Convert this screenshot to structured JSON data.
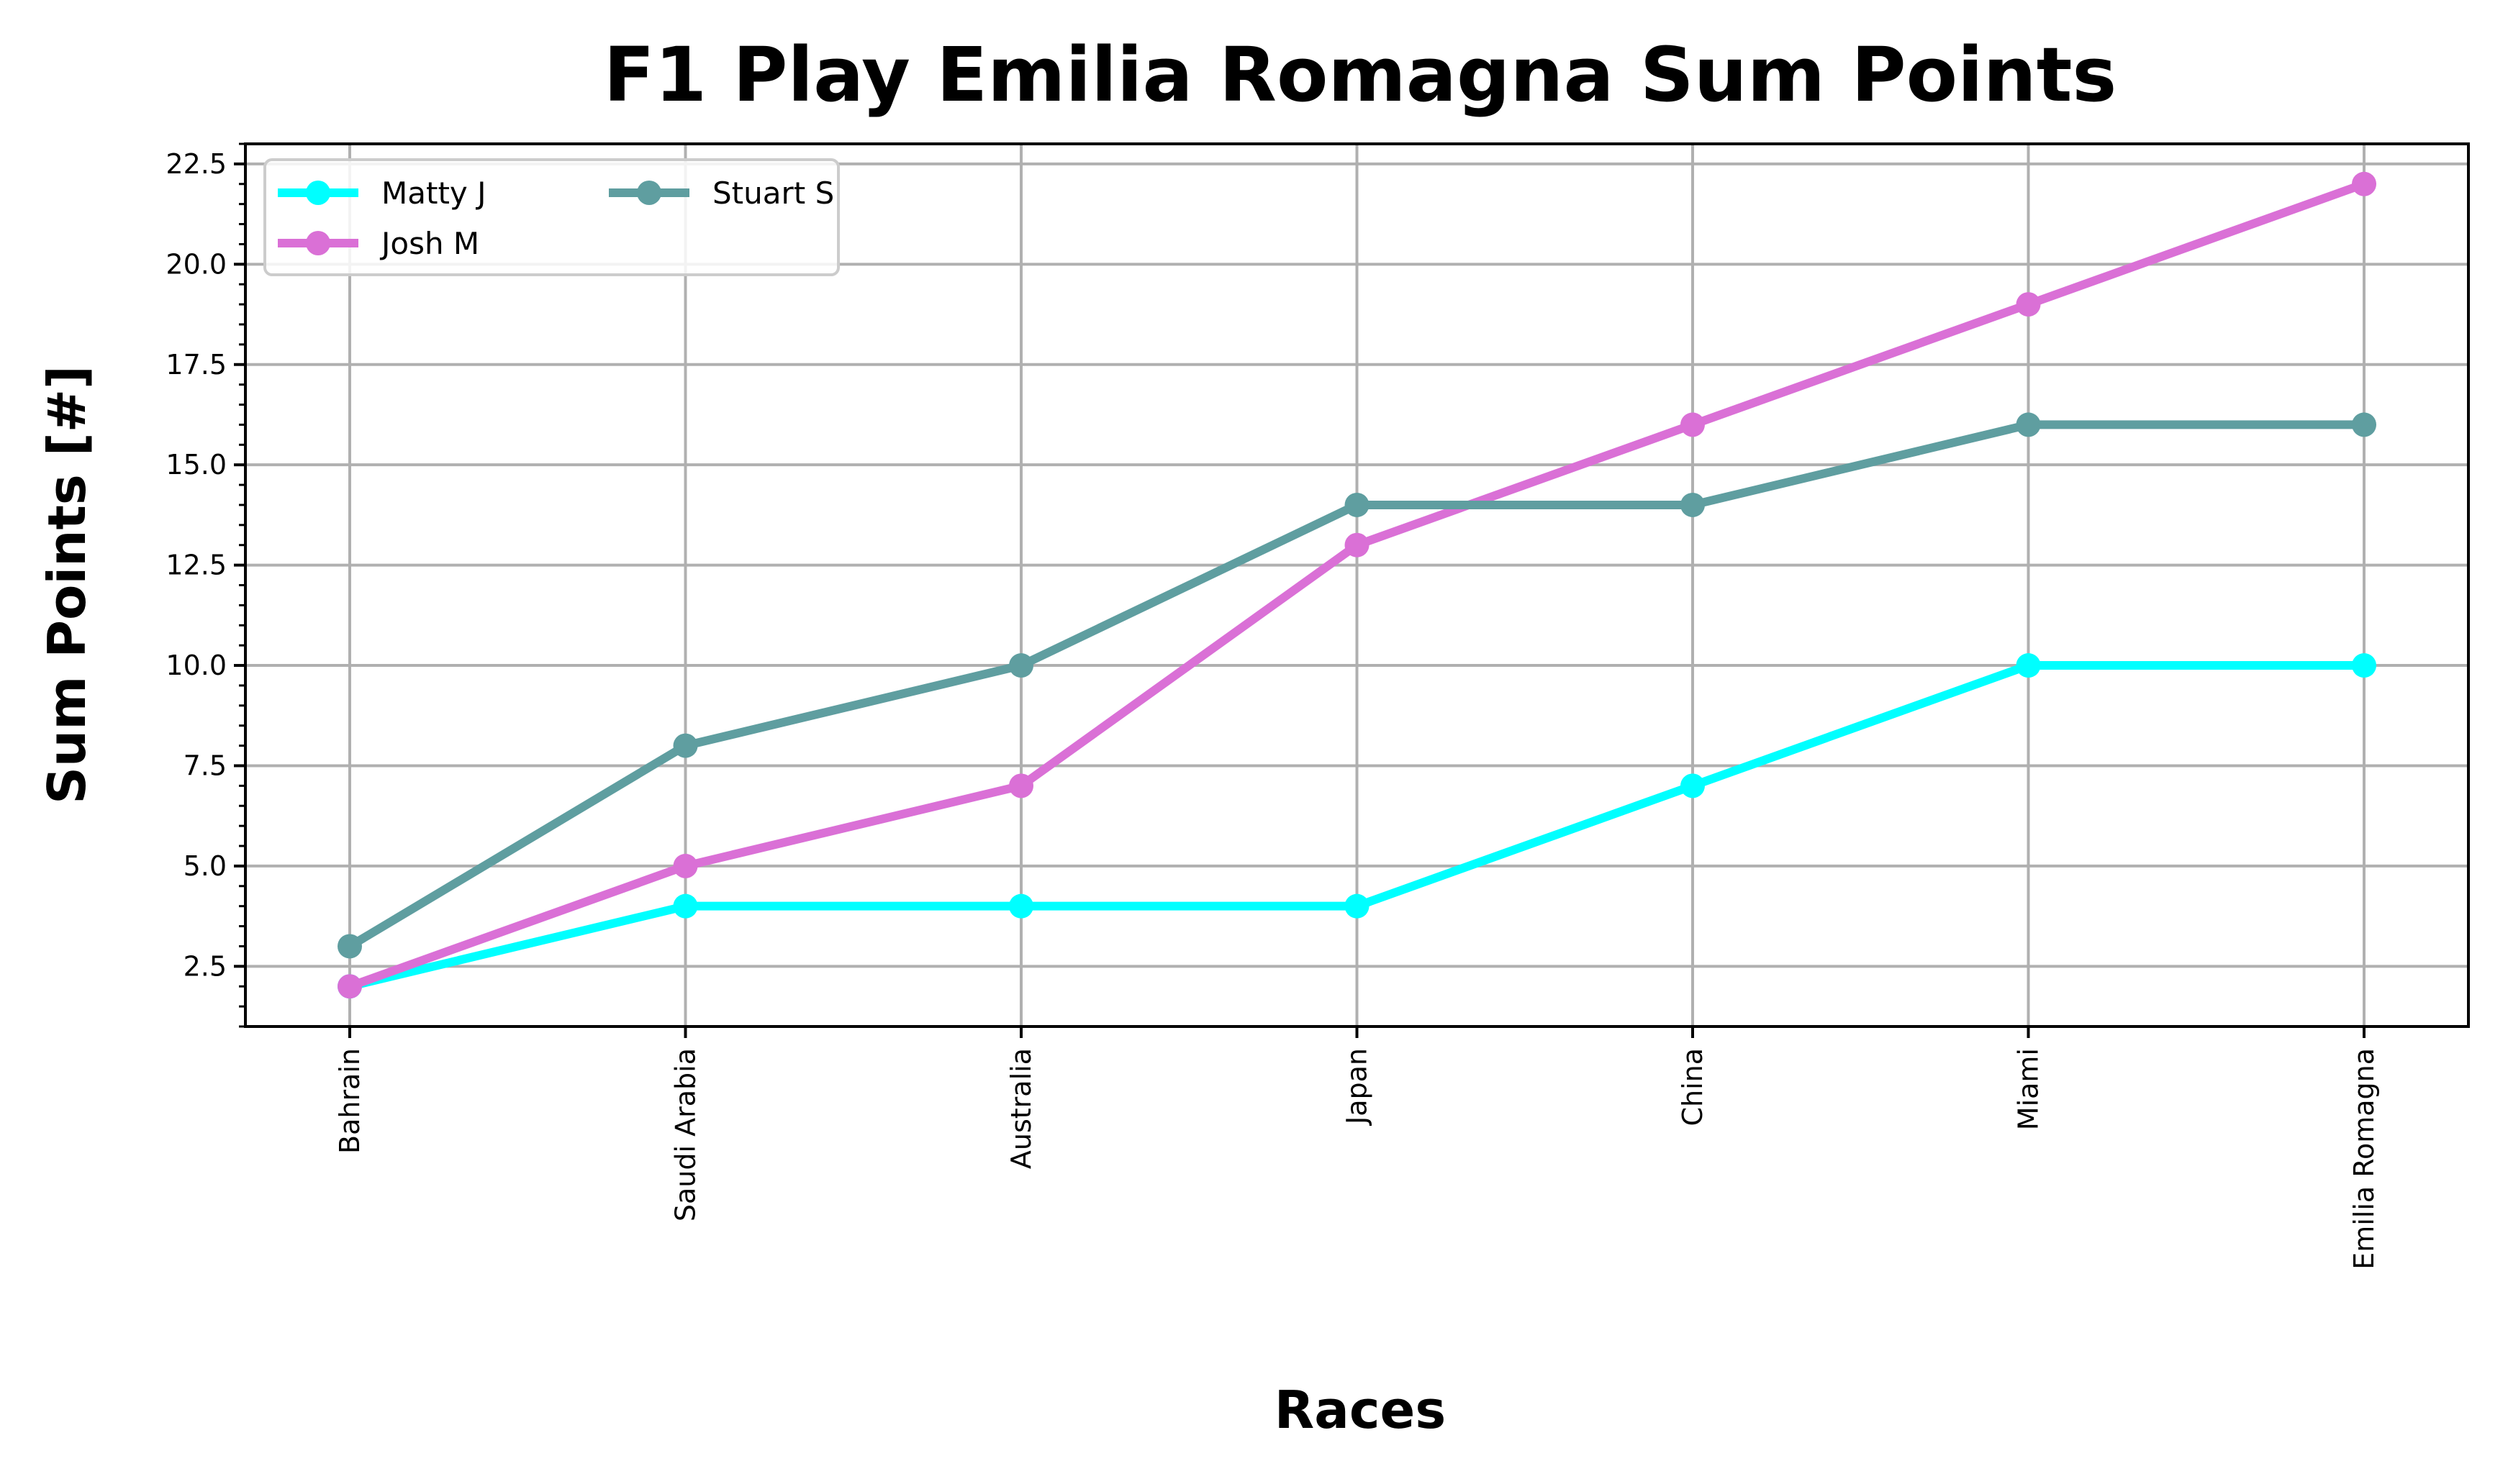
{
  "chart_data": {
    "type": "line",
    "title": "F1 Play Emilia Romagna Sum Points",
    "xlabel": "Races",
    "ylabel": "Sum Points [#]",
    "categories": [
      "Bahrain",
      "Saudi Arabia",
      "Australia",
      "Japan",
      "China",
      "Miami",
      "Emilia Romagna"
    ],
    "ylim": [
      1.0,
      23.0
    ],
    "yticks": [
      2.5,
      5.0,
      7.5,
      10.0,
      12.5,
      15.0,
      17.5,
      20.0,
      22.5
    ],
    "ytick_labels": [
      "2.5",
      "5.0",
      "7.5",
      "10.0",
      "12.5",
      "15.0",
      "17.5",
      "20.0",
      "22.5"
    ],
    "grid": true,
    "legend_position": "top-left",
    "series": [
      {
        "name": "Matty J",
        "color": "#00ffff",
        "values": [
          2,
          4,
          4,
          4,
          7,
          10,
          10
        ]
      },
      {
        "name": "Josh M",
        "color": "#da70d6",
        "values": [
          2,
          5,
          7,
          13,
          16,
          19,
          22
        ]
      },
      {
        "name": "Stuart S",
        "color": "#5f9ea0",
        "values": [
          3,
          8,
          10,
          14,
          14,
          16,
          16
        ]
      }
    ]
  }
}
